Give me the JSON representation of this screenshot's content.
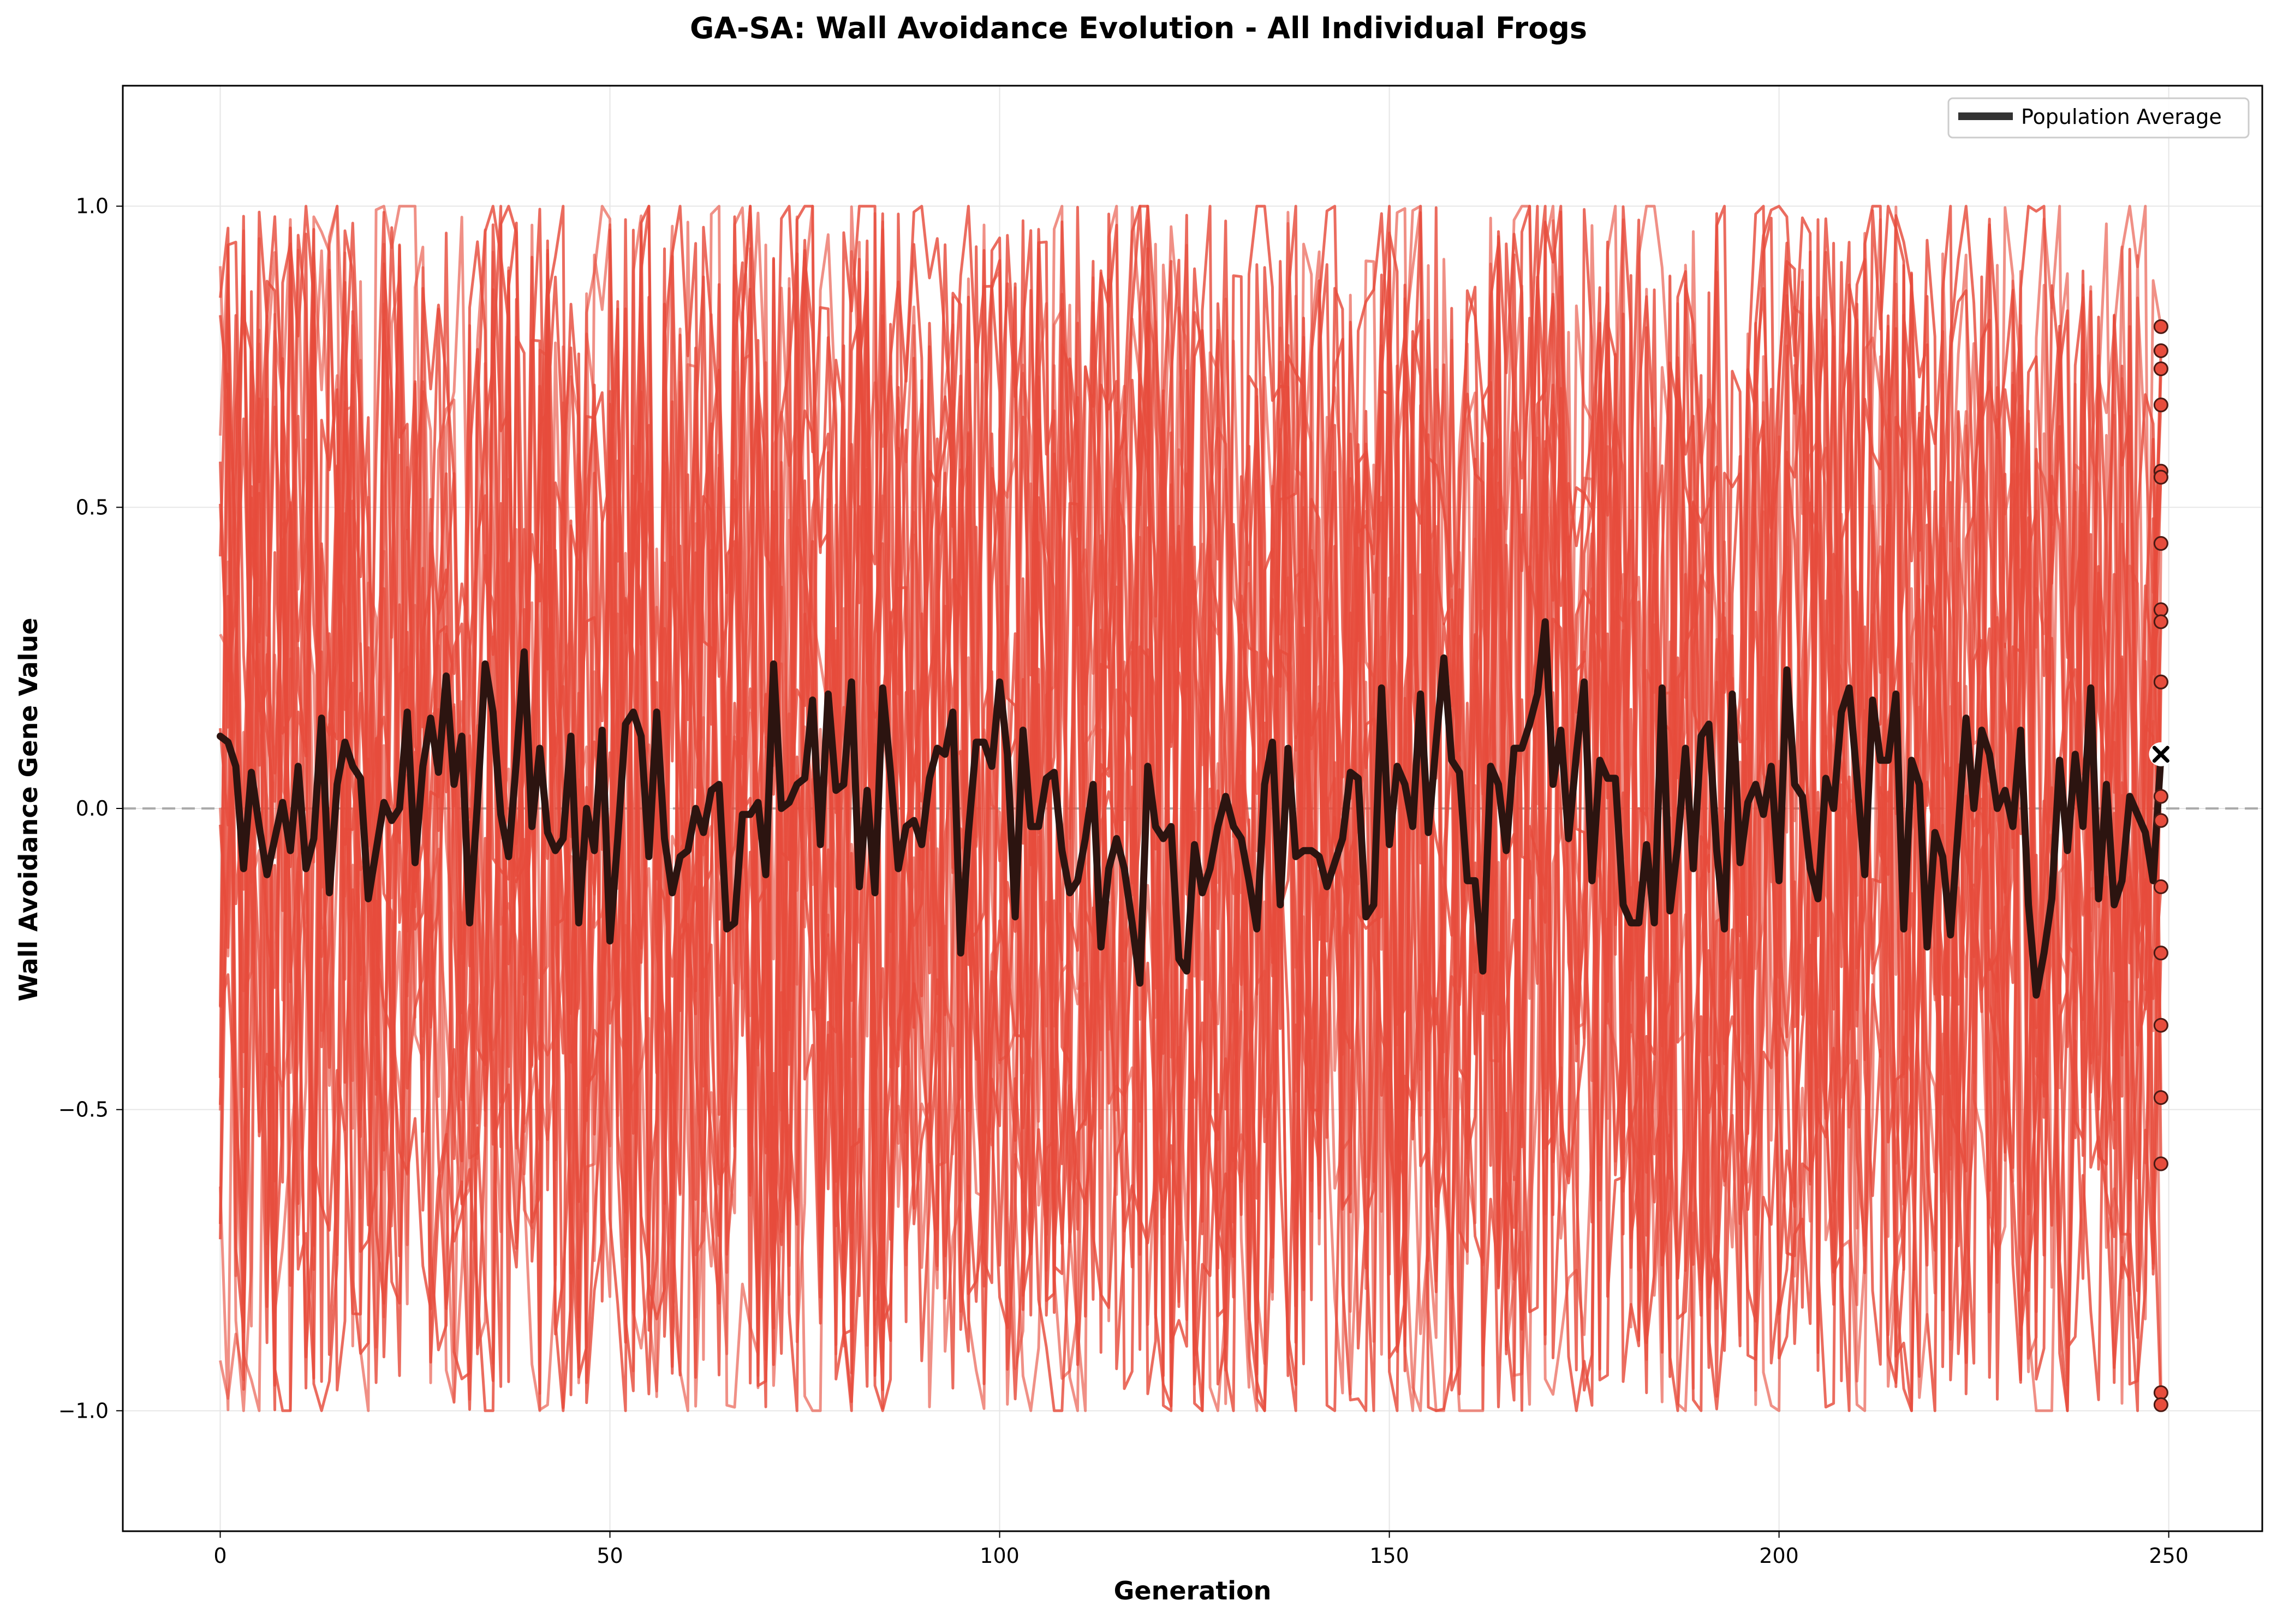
{
  "chart_data": {
    "type": "line",
    "title": "GA-SA: Wall Avoidance Evolution - All Individual Frogs",
    "xlabel": "Generation",
    "ylabel": "Wall Avoidance Gene Value",
    "xlim": [
      -12.5,
      262
    ],
    "ylim": [
      -1.2,
      1.2
    ],
    "x_ticks": [
      0,
      50,
      100,
      150,
      200,
      250
    ],
    "y_ticks": [
      -1.0,
      -0.5,
      0.0,
      0.5,
      1.0
    ],
    "y_tick_labels": [
      "−1.0",
      "−0.5",
      "0.0",
      "0.5",
      "1.0"
    ],
    "grid": true,
    "legend_position": "top-right",
    "reference_line_y": 0.0,
    "individual_color": "#e74c3c",
    "average_color": "#2c1410",
    "legend_color": "#333333",
    "individuals_count": 20,
    "final_generation": 249,
    "final_values": [
      0.8,
      0.76,
      0.73,
      0.67,
      0.56,
      0.55,
      0.44,
      0.33,
      0.31,
      0.21,
      0.21,
      0.02,
      -0.02,
      -0.13,
      -0.24,
      -0.36,
      -0.48,
      -0.59,
      -0.97,
      -0.99
    ],
    "final_average": 0.09,
    "series": [
      {
        "name": "Population Average",
        "x_start": 0,
        "values": [
          0.12,
          0.11,
          0.07,
          -0.1,
          0.06,
          -0.03,
          -0.11,
          -0.05,
          0.01,
          -0.07,
          0.07,
          -0.1,
          -0.05,
          0.15,
          -0.14,
          0.04,
          0.11,
          0.07,
          0.05,
          -0.15,
          -0.07,
          0.01,
          -0.02,
          0.0,
          0.16,
          -0.09,
          0.07,
          0.15,
          0.06,
          0.22,
          0.04,
          0.12,
          -0.19,
          0.01,
          0.24,
          0.16,
          -0.01,
          -0.08,
          0.08,
          0.26,
          -0.03,
          0.1,
          -0.04,
          -0.07,
          -0.05,
          0.12,
          -0.19,
          0.0,
          -0.07,
          0.13,
          -0.22,
          -0.05,
          0.14,
          0.16,
          0.12,
          -0.08,
          0.16,
          -0.05,
          -0.14,
          -0.08,
          -0.07,
          0.0,
          -0.04,
          0.03,
          0.04,
          -0.2,
          -0.19,
          -0.01,
          -0.01,
          0.01,
          -0.11,
          0.24,
          0.0,
          0.01,
          0.04,
          0.05,
          0.18,
          -0.06,
          0.19,
          0.03,
          0.04,
          0.21,
          -0.13,
          0.03,
          -0.14,
          0.2,
          0.06,
          -0.1,
          -0.03,
          -0.02,
          -0.06,
          0.05,
          0.1,
          0.09,
          0.16,
          -0.24,
          -0.04,
          0.11,
          0.11,
          0.07,
          0.21,
          0.09,
          -0.18,
          0.13,
          -0.03,
          -0.03,
          0.05,
          0.06,
          -0.07,
          -0.14,
          -0.12,
          -0.05,
          0.04,
          -0.23,
          -0.1,
          -0.05,
          -0.1,
          -0.19,
          -0.29,
          0.07,
          -0.03,
          -0.05,
          -0.03,
          -0.25,
          -0.27,
          -0.06,
          -0.14,
          -0.1,
          -0.03,
          0.02,
          -0.03,
          -0.05,
          -0.12,
          -0.2,
          0.04,
          0.11,
          -0.16,
          0.1,
          -0.08,
          -0.07,
          -0.07,
          -0.08,
          -0.13,
          -0.09,
          -0.05,
          0.06,
          0.05,
          -0.18,
          -0.16,
          0.2,
          -0.06,
          0.07,
          0.04,
          -0.03,
          0.19,
          -0.04,
          0.11,
          0.25,
          0.08,
          0.06,
          -0.12,
          -0.12,
          -0.27,
          0.07,
          0.04,
          -0.07,
          0.1,
          0.1,
          0.14,
          0.19,
          0.31,
          0.04,
          0.13,
          -0.05,
          0.09,
          0.21,
          -0.12,
          0.08,
          0.05,
          0.05,
          -0.16,
          -0.19,
          -0.19,
          -0.06,
          -0.19,
          0.2,
          -0.17,
          -0.06,
          0.1,
          -0.1,
          0.12,
          0.14,
          -0.07,
          -0.2,
          0.19,
          -0.09,
          0.01,
          0.04,
          -0.01,
          0.07,
          -0.12,
          0.23,
          0.04,
          0.02,
          -0.1,
          -0.15,
          0.05,
          0.0,
          0.16,
          0.2,
          0.05,
          -0.11,
          0.18,
          0.08,
          0.08,
          0.19,
          -0.2,
          0.08,
          0.04,
          -0.23,
          -0.04,
          -0.08,
          -0.21,
          -0.03,
          0.15,
          0.0,
          0.13,
          0.09,
          0.0,
          0.03,
          -0.03,
          0.13,
          -0.16,
          -0.31,
          -0.24,
          -0.15,
          0.08,
          -0.07,
          0.09,
          -0.03,
          0.2,
          -0.15,
          0.04,
          -0.16,
          -0.12,
          0.02,
          -0.01,
          -0.04,
          -0.12,
          0.09
        ]
      }
    ]
  }
}
